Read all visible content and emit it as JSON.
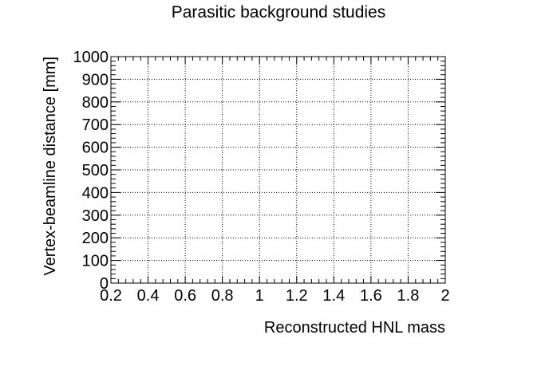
{
  "chart_data": {
    "type": "scatter",
    "title": "Parasitic background studies",
    "xlabel": "Reconstructed HNL mass",
    "ylabel": "Vertex-beamline distance [mm]",
    "xlim": [
      0.2,
      2
    ],
    "ylim": [
      0,
      1000
    ],
    "x_ticks": [
      "0.2",
      "0.4",
      "0.6",
      "0.8",
      "1",
      "1.2",
      "1.4",
      "1.6",
      "1.8",
      "2"
    ],
    "y_ticks": [
      "0",
      "100",
      "200",
      "300",
      "400",
      "500",
      "600",
      "700",
      "800",
      "900",
      "1000"
    ],
    "grid": true,
    "series": [
      {
        "x": [],
        "y": []
      }
    ]
  }
}
